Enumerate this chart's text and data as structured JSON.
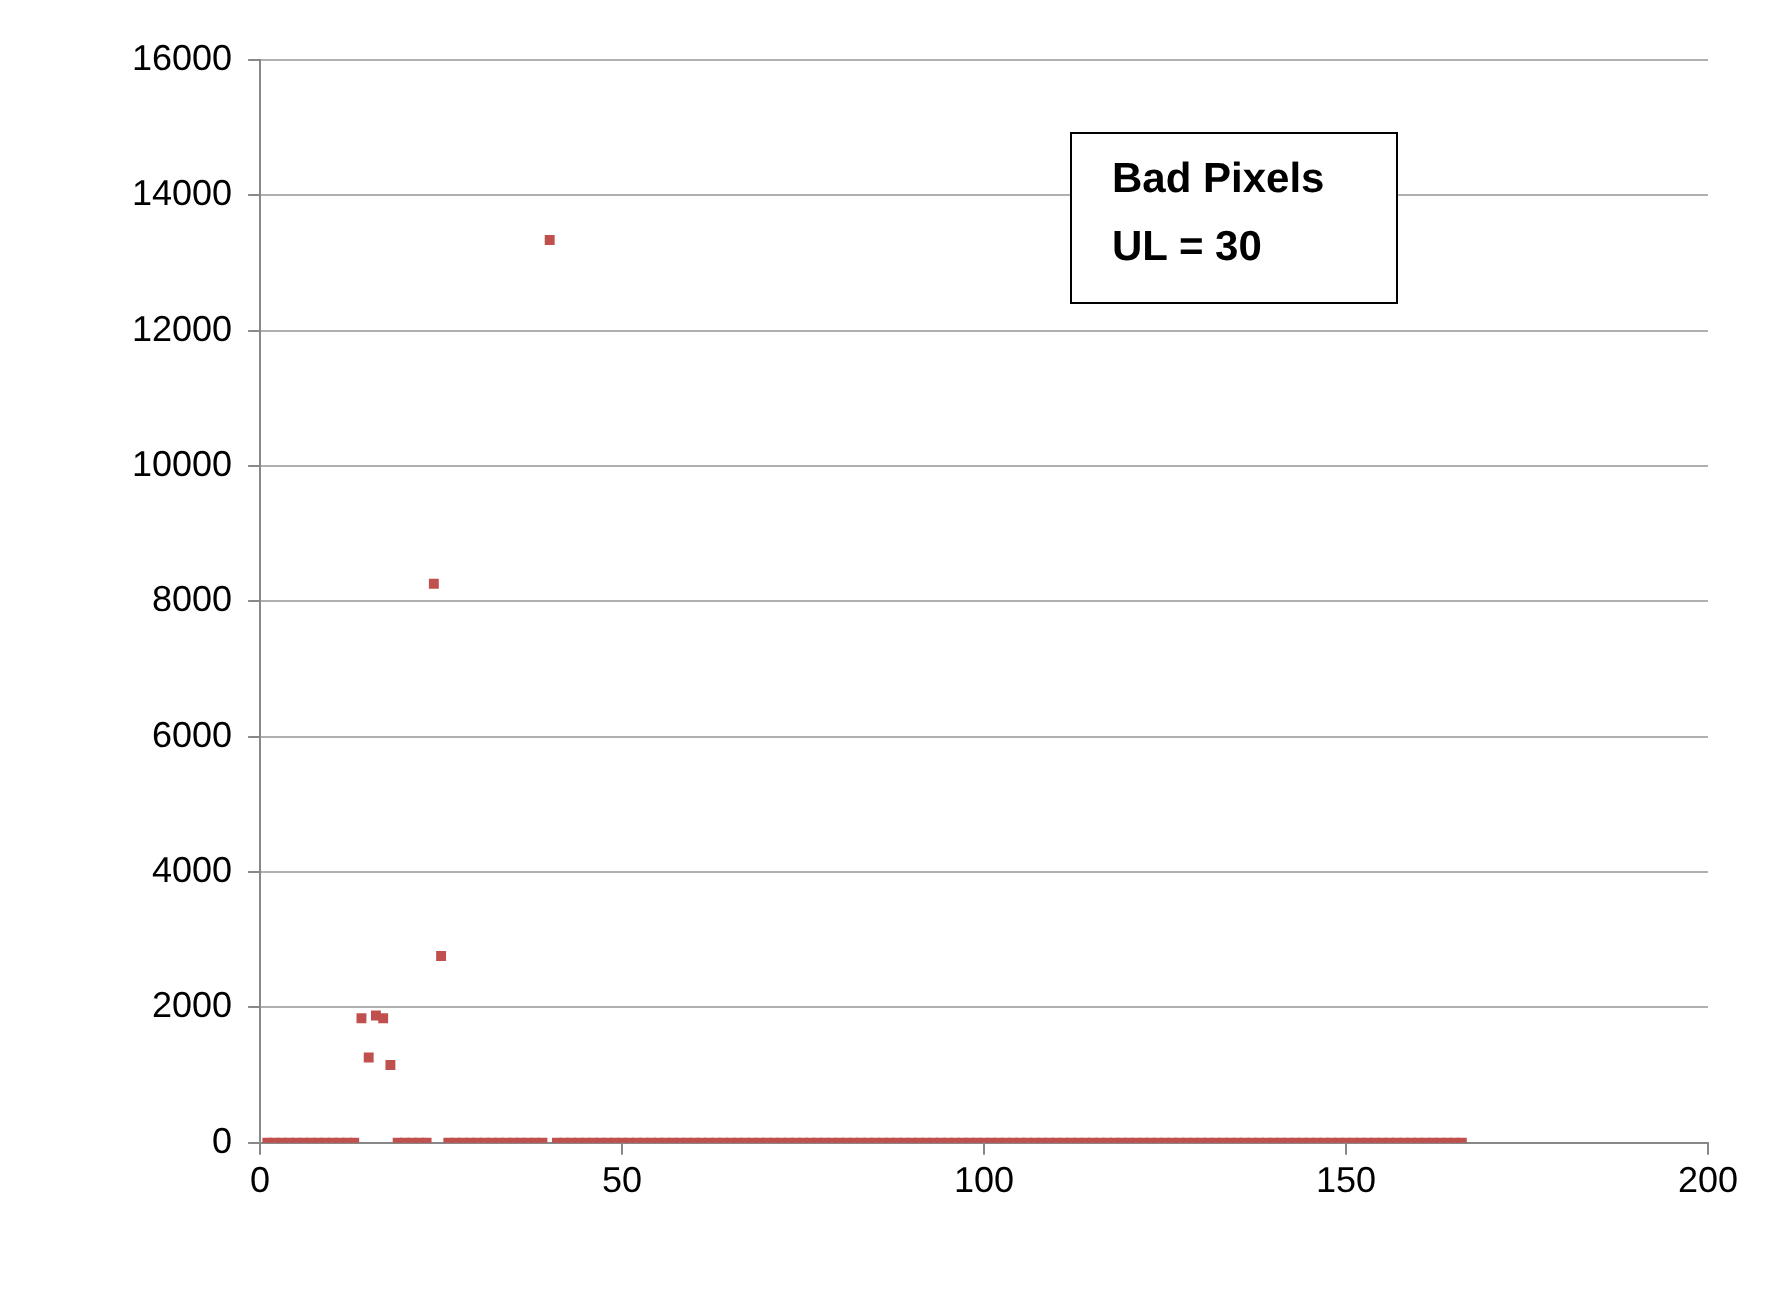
{
  "chart_data": {
    "type": "scatter",
    "marker": "square",
    "grid": "y",
    "legend": false,
    "xlim": [
      0,
      200
    ],
    "xticks": [
      0,
      50,
      100,
      150,
      200
    ],
    "ylim": [
      0,
      16000
    ],
    "yticks": [
      0,
      2000,
      4000,
      6000,
      8000,
      10000,
      12000,
      14000,
      16000
    ],
    "annotations": [
      "Bad Pixels",
      "UL = 30"
    ],
    "series": [
      {
        "color": "#c0504d",
        "x": [
          1,
          2,
          3,
          4,
          5,
          6,
          7,
          8,
          9,
          10,
          11,
          12,
          13,
          14,
          15,
          16,
          17,
          18,
          19,
          20,
          21,
          22,
          23,
          24,
          25,
          26,
          27,
          28,
          29,
          30,
          31,
          32,
          33,
          34,
          35,
          36,
          37,
          38,
          39,
          40,
          41,
          42,
          43,
          44,
          45,
          46,
          47,
          48,
          49,
          50,
          51,
          52,
          53,
          54,
          55,
          56,
          57,
          58,
          59,
          60,
          61,
          62,
          63,
          64,
          65,
          66,
          67,
          68,
          69,
          70,
          71,
          72,
          73,
          74,
          75,
          76,
          77,
          78,
          79,
          80,
          81,
          82,
          83,
          84,
          85,
          86,
          87,
          88,
          89,
          90,
          91,
          92,
          93,
          94,
          95,
          96,
          97,
          98,
          99,
          100,
          101,
          102,
          103,
          104,
          105,
          106,
          107,
          108,
          109,
          110,
          111,
          112,
          113,
          114,
          115,
          116,
          117,
          118,
          119,
          120,
          121,
          122,
          123,
          124,
          125,
          126,
          127,
          128,
          129,
          130,
          131,
          132,
          133,
          134,
          135,
          136,
          137,
          138,
          139,
          140,
          141,
          142,
          143,
          144,
          145,
          146,
          147,
          148,
          149,
          150,
          151,
          152,
          153,
          154,
          155,
          156,
          157,
          158,
          159,
          160,
          161,
          162,
          163,
          164,
          165,
          166
        ],
        "values": [
          0,
          0,
          0,
          0,
          0,
          0,
          0,
          0,
          0,
          0,
          0,
          0,
          0,
          1840,
          1260,
          1880,
          1840,
          1150,
          0,
          0,
          0,
          0,
          0,
          8260,
          2760,
          0,
          0,
          0,
          0,
          0,
          0,
          0,
          0,
          0,
          0,
          0,
          0,
          0,
          0,
          13340,
          0,
          0,
          0,
          0,
          0,
          0,
          0,
          0,
          0,
          0,
          0,
          0,
          0,
          0,
          0,
          0,
          0,
          0,
          0,
          0,
          0,
          0,
          0,
          0,
          0,
          0,
          0,
          0,
          0,
          0,
          0,
          0,
          0,
          0,
          0,
          0,
          0,
          0,
          0,
          0,
          0,
          0,
          0,
          0,
          0,
          0,
          0,
          0,
          0,
          0,
          0,
          0,
          0,
          0,
          0,
          0,
          0,
          0,
          0,
          0,
          0,
          0,
          0,
          0,
          0,
          0,
          0,
          0,
          0,
          0,
          0,
          0,
          0,
          0,
          0,
          0,
          0,
          0,
          0,
          0,
          0,
          0,
          0,
          0,
          0,
          0,
          0,
          0,
          0,
          0,
          0,
          0,
          0,
          0,
          0,
          0,
          0,
          0,
          0,
          0,
          0,
          0,
          0,
          0,
          0,
          0,
          0,
          0,
          0,
          0,
          0,
          0,
          0,
          0,
          0,
          0,
          0,
          0,
          0,
          0,
          0,
          0,
          0,
          0,
          0,
          0
        ]
      }
    ]
  }
}
